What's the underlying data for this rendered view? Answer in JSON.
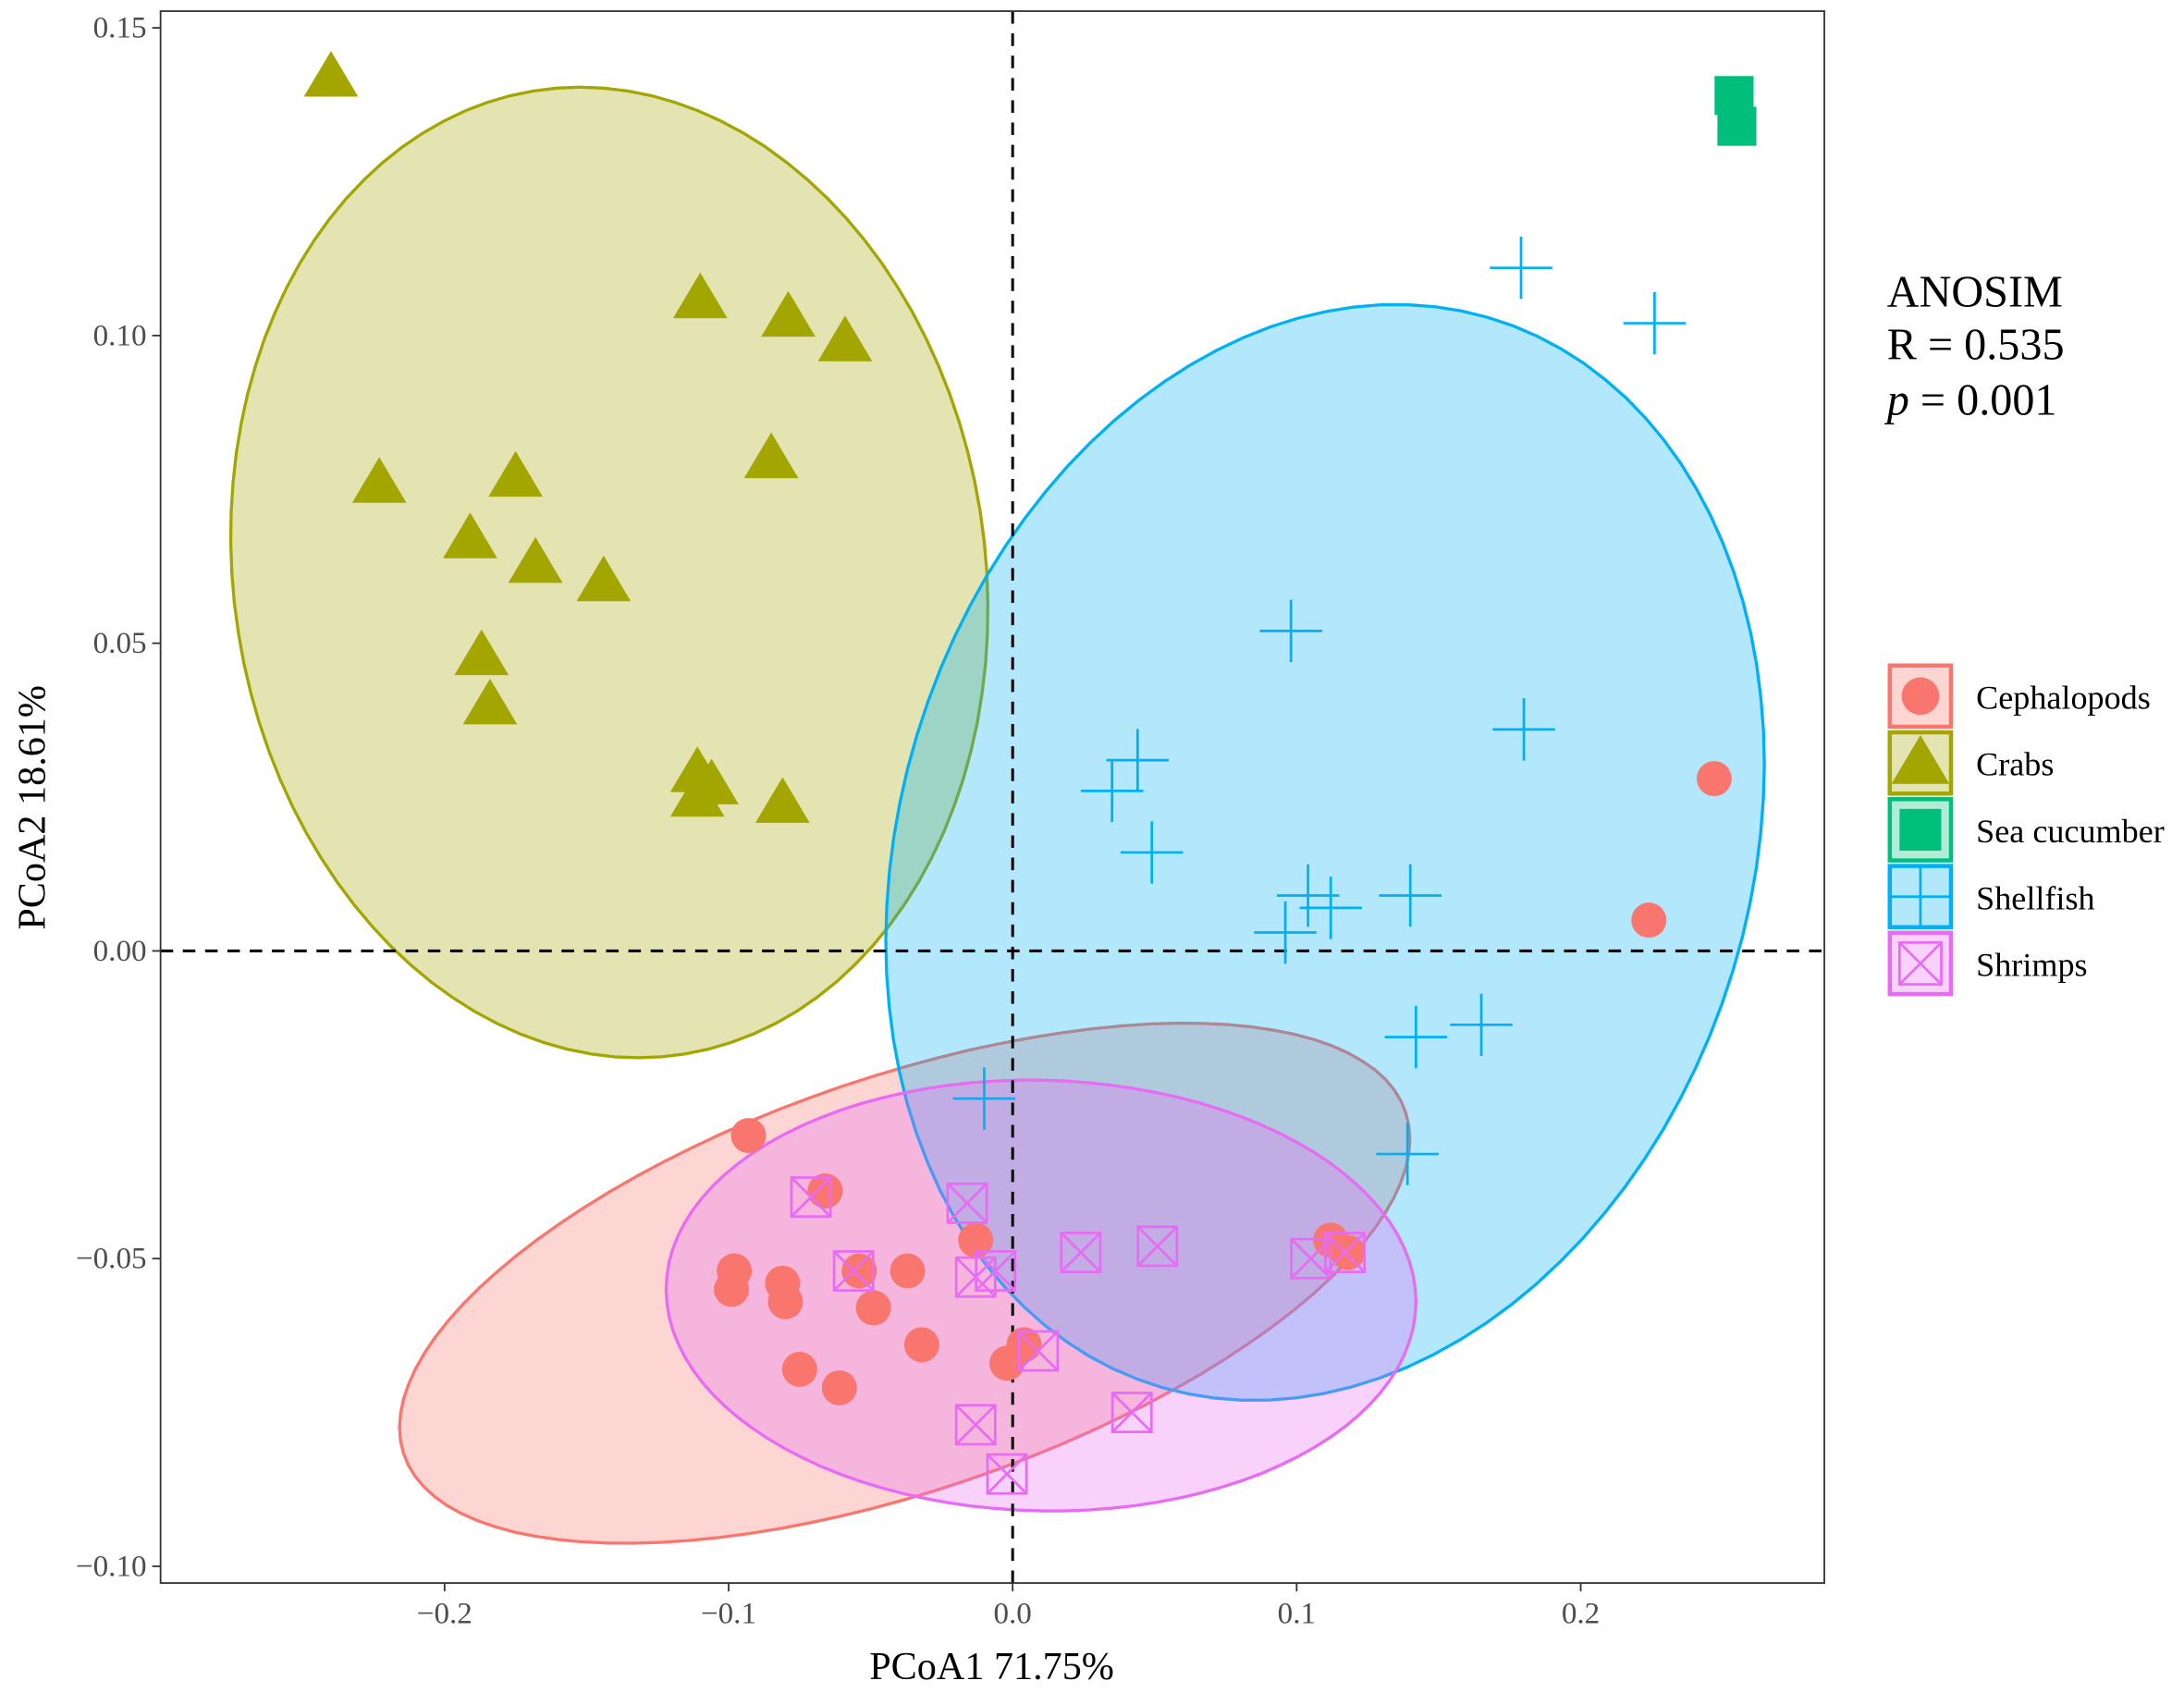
{
  "chart_data": {
    "type": "scatter",
    "title": "",
    "xlabel": "PCoA1 71.75%",
    "ylabel": "PCoA2 18.61%",
    "xlim": [
      -0.3,
      0.285
    ],
    "ylim": [
      -0.102,
      0.153
    ],
    "grid": false,
    "reference_lines": {
      "x": 0,
      "y": 0,
      "style": "dashed"
    },
    "x_ticks": [
      -0.2,
      -0.1,
      0.0,
      0.1,
      0.2
    ],
    "x_tick_labels": [
      "−0.2",
      "−0.1",
      "0.0",
      "0.1",
      "0.2"
    ],
    "y_ticks": [
      -0.1,
      -0.05,
      0.0,
      0.05,
      0.1,
      0.15
    ],
    "y_tick_labels": [
      "−0.10",
      "−0.05",
      "0.00",
      "0.05",
      "0.10",
      "0.15"
    ],
    "annotation": {
      "line1": "ANOSIM",
      "line2": "R = 0.535",
      "p_symbol": "p",
      "p_rest": " = 0.001"
    },
    "legend_position": "right",
    "series": [
      {
        "name": "Cephalopods",
        "shape": "circle",
        "color": "#F8766D",
        "ellipse": {
          "center": [
            -0.038,
            -0.054
          ],
          "axis_a": [
            0.1765,
            0.0276
          ],
          "axis_b": [
            -0.022,
            0.032
          ]
        },
        "points": [
          [
            -0.093,
            -0.03
          ],
          [
            -0.066,
            -0.039
          ],
          [
            -0.098,
            -0.052
          ],
          [
            -0.099,
            -0.055
          ],
          [
            -0.081,
            -0.054
          ],
          [
            -0.08,
            -0.057
          ],
          [
            -0.054,
            -0.052
          ],
          [
            -0.049,
            -0.058
          ],
          [
            -0.037,
            -0.052
          ],
          [
            -0.032,
            -0.064
          ],
          [
            -0.075,
            -0.068
          ],
          [
            -0.061,
            -0.071
          ],
          [
            -0.013,
            -0.047
          ],
          [
            0.004,
            -0.064
          ],
          [
            -0.002,
            -0.067
          ],
          [
            0.112,
            -0.047
          ],
          [
            0.118,
            -0.049
          ],
          [
            0.224,
            0.005
          ],
          [
            0.247,
            0.028
          ]
        ]
      },
      {
        "name": "Crabs",
        "shape": "triangle",
        "color": "#A3A500",
        "ellipse": {
          "center": [
            -0.142,
            0.0615
          ],
          "axis_a": [
            -0.0186,
            0.0787
          ],
          "axis_b": [
            0.132,
            0.005
          ]
        },
        "points": [
          [
            -0.24,
            0.142
          ],
          [
            -0.11,
            0.106
          ],
          [
            -0.079,
            0.103
          ],
          [
            -0.059,
            0.099
          ],
          [
            -0.223,
            0.076
          ],
          [
            -0.175,
            0.077
          ],
          [
            -0.085,
            0.08
          ],
          [
            -0.191,
            0.067
          ],
          [
            -0.168,
            0.063
          ],
          [
            -0.144,
            0.06
          ],
          [
            -0.187,
            0.048
          ],
          [
            -0.184,
            0.04
          ],
          [
            -0.111,
            0.029
          ],
          [
            -0.106,
            0.027
          ],
          [
            -0.111,
            0.025
          ],
          [
            -0.081,
            0.024
          ]
        ]
      },
      {
        "name": "Sea cucumber",
        "shape": "square",
        "color": "#00BF7D",
        "ellipse": null,
        "points": [
          [
            0.254,
            0.139
          ],
          [
            0.255,
            0.134
          ]
        ]
      },
      {
        "name": "Shellfish",
        "shape": "plus",
        "color": "#00B0F6",
        "ellipse": {
          "center": [
            0.11,
            0.016
          ],
          "axis_a": [
            0.048,
            0.088
          ],
          "axis_b": [
            0.147,
            -0.0136
          ]
        },
        "points": [
          [
            0.179,
            0.111
          ],
          [
            0.226,
            0.102
          ],
          [
            0.098,
            0.052
          ],
          [
            0.044,
            0.031
          ],
          [
            0.035,
            0.026
          ],
          [
            0.049,
            0.016
          ],
          [
            0.104,
            0.009
          ],
          [
            0.112,
            0.007
          ],
          [
            0.14,
            0.009
          ],
          [
            0.096,
            0.003
          ],
          [
            0.18,
            0.036
          ],
          [
            0.142,
            -0.014
          ],
          [
            0.165,
            -0.012
          ],
          [
            0.139,
            -0.033
          ],
          [
            -0.01,
            -0.024
          ]
        ]
      },
      {
        "name": "Shrimps",
        "shape": "square-cross",
        "color": "#E76BF3",
        "ellipse": {
          "center": [
            0.01,
            -0.056
          ],
          "axis_a": [
            0.132,
            -0.001
          ],
          "axis_b": [
            0.0,
            0.035
          ]
        },
        "points": [
          [
            -0.071,
            -0.04
          ],
          [
            -0.016,
            -0.041
          ],
          [
            -0.056,
            -0.052
          ],
          [
            -0.006,
            -0.052
          ],
          [
            -0.013,
            -0.053
          ],
          [
            0.024,
            -0.049
          ],
          [
            0.051,
            -0.048
          ],
          [
            0.105,
            -0.05
          ],
          [
            0.117,
            -0.049
          ],
          [
            0.009,
            -0.065
          ],
          [
            0.042,
            -0.075
          ],
          [
            -0.013,
            -0.077
          ],
          [
            -0.002,
            -0.085
          ]
        ]
      }
    ]
  }
}
